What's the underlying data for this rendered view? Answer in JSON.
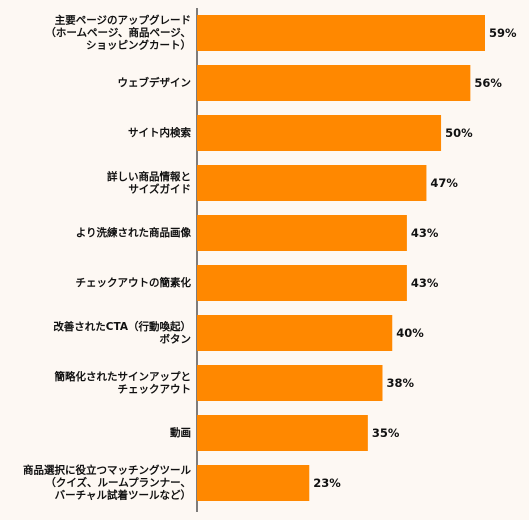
{
  "chart_data": {
    "type": "bar",
    "orientation": "horizontal",
    "title": "",
    "xlabel": "",
    "ylabel": "",
    "grid": false,
    "legend": "none",
    "xlim": [
      0,
      59
    ],
    "bar_color": "#ff8800",
    "background_color": "#fdf8f3",
    "axis_color": "#000000",
    "categories": [
      "主要ページのアップグレード\n（ホームページ、商品ページ、\nショッピングカート）",
      "ウェブデザイン",
      "サイト内検索",
      "詳しい商品情報と\nサイズガイド",
      "より洗練された商品画像",
      "チェックアウトの簡素化",
      "改善されたCTA（行動喚起）\nボタン",
      "簡略化されたサインアップと\nチェックアウト",
      "動画",
      "商品選択に役立つマッチングツール\n（クイズ、ルームプランナー、\nバーチャル試着ツールなど）"
    ],
    "values": [
      59,
      56,
      50,
      47,
      43,
      43,
      40,
      38,
      35,
      23
    ],
    "value_labels": [
      "59%",
      "56%",
      "50%",
      "47%",
      "43%",
      "43%",
      "40%",
      "38%",
      "35%",
      "23%"
    ]
  }
}
